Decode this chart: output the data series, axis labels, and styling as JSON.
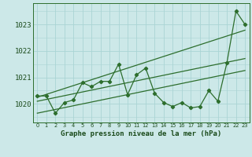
{
  "title": "Graphe pression niveau de la mer (hPa)",
  "bg_color": "#cce8e8",
  "grid_color": "#aad4d4",
  "line_color": "#2d6e2d",
  "x_labels": [
    "0",
    "1",
    "2",
    "3",
    "4",
    "5",
    "6",
    "7",
    "8",
    "9",
    "10",
    "11",
    "12",
    "13",
    "14",
    "15",
    "16",
    "17",
    "18",
    "19",
    "20",
    "21",
    "22",
    "23"
  ],
  "ylim": [
    1019.3,
    1023.8
  ],
  "yticks": [
    1020,
    1021,
    1022,
    1023
  ],
  "main_series": [
    1020.3,
    1020.3,
    1019.65,
    1020.05,
    1020.15,
    1020.8,
    1020.65,
    1020.85,
    1020.85,
    1021.5,
    1020.35,
    1021.1,
    1021.35,
    1020.4,
    1020.05,
    1019.9,
    1020.05,
    1019.85,
    1019.9,
    1020.5,
    1020.1,
    1021.55,
    1023.5,
    1023.0
  ],
  "trend_low": [
    1019.65,
    1019.72,
    1019.79,
    1019.86,
    1019.93,
    1020.0,
    1020.07,
    1020.14,
    1020.21,
    1020.28,
    1020.35,
    1020.42,
    1020.49,
    1020.56,
    1020.63,
    1020.7,
    1020.77,
    1020.84,
    1020.91,
    1020.98,
    1021.05,
    1021.12,
    1021.19,
    1021.26
  ],
  "trend_mid": [
    1020.1,
    1020.17,
    1020.24,
    1020.31,
    1020.38,
    1020.45,
    1020.52,
    1020.59,
    1020.66,
    1020.73,
    1020.8,
    1020.87,
    1020.94,
    1021.01,
    1021.08,
    1021.15,
    1021.22,
    1021.29,
    1021.36,
    1021.43,
    1021.5,
    1021.57,
    1021.64,
    1021.71
  ],
  "trend_high": [
    1020.25,
    1020.36,
    1020.47,
    1020.58,
    1020.69,
    1020.8,
    1020.91,
    1021.02,
    1021.13,
    1021.24,
    1021.35,
    1021.46,
    1021.57,
    1021.68,
    1021.79,
    1021.9,
    1022.01,
    1022.12,
    1022.23,
    1022.34,
    1022.45,
    1022.56,
    1022.67,
    1022.78
  ]
}
